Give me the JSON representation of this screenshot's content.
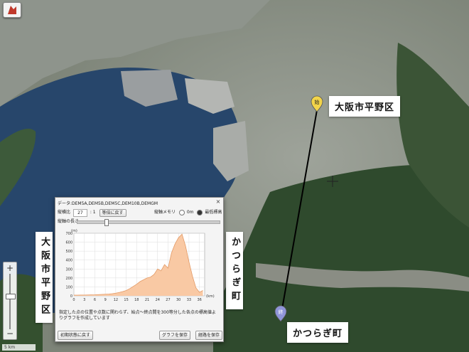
{
  "places": {
    "start_label": "大阪市平野区",
    "end_label": "かつらぎ町",
    "start_pin": "始",
    "end_pin": "終"
  },
  "icons": {
    "logo": "red-shield-logo-icon",
    "crosshair": "crosshair-icon",
    "zoom_in": "plus-icon",
    "zoom_out": "minus-icon",
    "close": "close-icon"
  },
  "zoom": {
    "plus": "+",
    "minus": "−"
  },
  "scale": {
    "label": "5 km"
  },
  "panel": {
    "title": "データ:DEM5A,DEM5B,DEM5C,DEM10B,DEMGM",
    "close": "×",
    "ratio_label": "縦横比",
    "ratio_value": "27",
    "ratio_suffix": ": 1",
    "restore_button": "等倍に戻す",
    "memory_label": "縦軸メモリ",
    "memory_option_zero": "0m",
    "memory_option_min": "最低標高",
    "length_label": "縦軸の長さ",
    "note": "指定した点の位置や点数に関わらず、始点〜終点間を300等分した各点の標高値よりグラフを作成しています",
    "reset_button": "初期状態に戻す",
    "save_graph_button": "グラフを保存",
    "save_route_button": "経路を保存"
  },
  "colors": {
    "fill": "#f9c9a4",
    "line": "#e39a66",
    "route": "#000000",
    "start_pin": "#f2d44a",
    "end_pin": "#8f95d8"
  },
  "chart_data": {
    "type": "area",
    "title": "",
    "xlabel": "(km)",
    "ylabel": "(m)",
    "xlim": [
      0,
      37.5
    ],
    "ylim": [
      0,
      700
    ],
    "x_ticks": [
      0,
      3,
      6,
      9,
      12,
      15,
      18,
      21,
      24,
      27,
      30,
      33,
      36
    ],
    "y_ticks": [
      0,
      100,
      200,
      300,
      400,
      500,
      600,
      700
    ],
    "grid": true,
    "x": [
      0,
      1,
      2,
      3,
      4,
      5,
      6,
      7,
      8,
      9,
      10,
      11,
      12,
      13,
      14,
      15,
      16,
      17,
      18,
      19,
      20,
      21,
      22,
      23,
      24,
      25,
      26,
      27,
      28,
      29,
      30,
      31,
      32,
      33,
      34,
      35,
      36,
      37
    ],
    "values": [
      8,
      8,
      9,
      9,
      10,
      11,
      12,
      14,
      16,
      18,
      20,
      24,
      30,
      38,
      48,
      60,
      80,
      105,
      130,
      160,
      180,
      200,
      210,
      240,
      300,
      280,
      350,
      310,
      480,
      580,
      650,
      690,
      560,
      380,
      220,
      90,
      40,
      60
    ]
  }
}
